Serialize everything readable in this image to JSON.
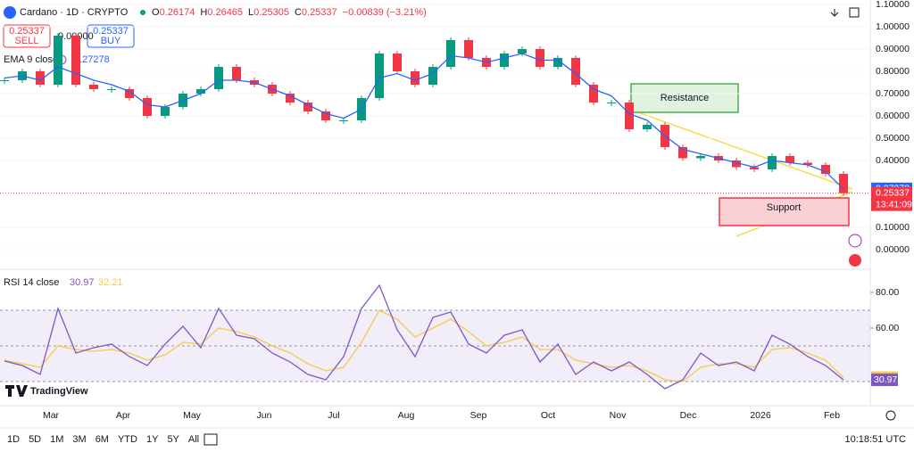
{
  "header": {
    "symbol": "Cardano · 1D · CRYPTO",
    "ohlc": [
      {
        "key": "O",
        "value": "0.26174"
      },
      {
        "key": "H",
        "value": "0.26465"
      },
      {
        "key": "L",
        "value": "0.25305"
      },
      {
        "key": "C",
        "value": "0.25337"
      }
    ],
    "change": "−0.00839 (−3.21%)",
    "sell": {
      "price": "0.25337",
      "label": "SELL"
    },
    "buy": {
      "price": "0.25337",
      "label": "BUY"
    },
    "spike_label": "0.00000",
    "ema_label": "EMA 9 close",
    "ema_value": "0.27278"
  },
  "chart_data": {
    "type": "candlestick",
    "closes": [
      0.76,
      0.8,
      0.74,
      0.96,
      0.74,
      0.72,
      0.72,
      0.68,
      0.6,
      0.64,
      0.7,
      0.72,
      0.82,
      0.76,
      0.74,
      0.7,
      0.66,
      0.62,
      0.58,
      0.58,
      0.68,
      0.88,
      0.8,
      0.74,
      0.82,
      0.94,
      0.86,
      0.82,
      0.88,
      0.9,
      0.82,
      0.86,
      0.74,
      0.66,
      0.66,
      0.54,
      0.56,
      0.46,
      0.41,
      0.42,
      0.4,
      0.37,
      0.36,
      0.42,
      0.39,
      0.38,
      0.34,
      0.25337
    ],
    "ema": [
      0.77,
      0.78,
      0.76,
      0.82,
      0.79,
      0.76,
      0.74,
      0.71,
      0.65,
      0.64,
      0.67,
      0.7,
      0.76,
      0.76,
      0.75,
      0.72,
      0.69,
      0.65,
      0.61,
      0.59,
      0.63,
      0.77,
      0.79,
      0.76,
      0.79,
      0.87,
      0.86,
      0.84,
      0.86,
      0.88,
      0.85,
      0.85,
      0.79,
      0.72,
      0.69,
      0.61,
      0.58,
      0.51,
      0.45,
      0.43,
      0.41,
      0.39,
      0.37,
      0.4,
      0.39,
      0.38,
      0.35,
      0.27278
    ],
    "ylim": [
      -0.08,
      1.12
    ],
    "yticks": [
      {
        "value": 1.1,
        "label": "1.10000"
      },
      {
        "value": 1.0,
        "label": "1.00000"
      },
      {
        "value": 0.9,
        "label": "0.90000"
      },
      {
        "value": 0.8,
        "label": "0.80000"
      },
      {
        "value": 0.7,
        "label": "0.70000"
      },
      {
        "value": 0.6,
        "label": "0.60000"
      },
      {
        "value": 0.5,
        "label": "0.50000"
      },
      {
        "value": 0.4,
        "label": "0.40000"
      },
      {
        "value": 0.1,
        "label": "0.10000"
      },
      {
        "value": 0,
        "label": "0.00000"
      }
    ],
    "ema_tag": {
      "value": 0.27278,
      "label": "0.27278"
    },
    "price_tag": {
      "value": 0.25337,
      "label": "0.25337"
    },
    "countdown": "13:41:09",
    "up_color": "#089981",
    "down_color": "#f23645",
    "ema_color": "#2962ff",
    "annotations": [
      "Resistance",
      "Support"
    ],
    "rsi": {
      "label": "RSI 14 close",
      "values": [
        41.5,
        39,
        34,
        71,
        46,
        49,
        51,
        44,
        39,
        51,
        61,
        49,
        71,
        56,
        54,
        46,
        41,
        34,
        31,
        44,
        71,
        84,
        59,
        44,
        66,
        69,
        51,
        46,
        56,
        59,
        41,
        51,
        34,
        41,
        36,
        41,
        34,
        26,
        31,
        46,
        39,
        41,
        36,
        56,
        51,
        44,
        39,
        30.97
      ],
      "ma": [
        42,
        40,
        38,
        50,
        48,
        47,
        48,
        46,
        42,
        45,
        52,
        51,
        60,
        58,
        55,
        50,
        46,
        40,
        36,
        38,
        52,
        70,
        65,
        55,
        60,
        65,
        58,
        50,
        52,
        55,
        48,
        48,
        42,
        40,
        38,
        39,
        36,
        31,
        30,
        38,
        40,
        40,
        38,
        48,
        49,
        46,
        42,
        32.21
      ],
      "value_label": "30.97",
      "ma_label": "32.21",
      "ylim": [
        19,
        91.5
      ],
      "yticks": [
        {
          "value": 80,
          "label": "80.00"
        },
        {
          "value": 60,
          "label": "60.00"
        }
      ],
      "band": [
        30,
        70
      ],
      "mid": 50,
      "color": "#7e57c2",
      "ma_color": "#f7c948"
    },
    "x_labels": [
      "Mar",
      "Apr",
      "May",
      "Jun",
      "Jul",
      "Aug",
      "Sep",
      "Oct",
      "Nov",
      "Dec",
      "2026",
      "Feb"
    ]
  },
  "brand": "TradingView",
  "footer": {
    "ranges": [
      "1D",
      "5D",
      "1M",
      "3M",
      "6M",
      "YTD",
      "1Y",
      "5Y",
      "All"
    ],
    "time": "10:18:51 UTC"
  }
}
